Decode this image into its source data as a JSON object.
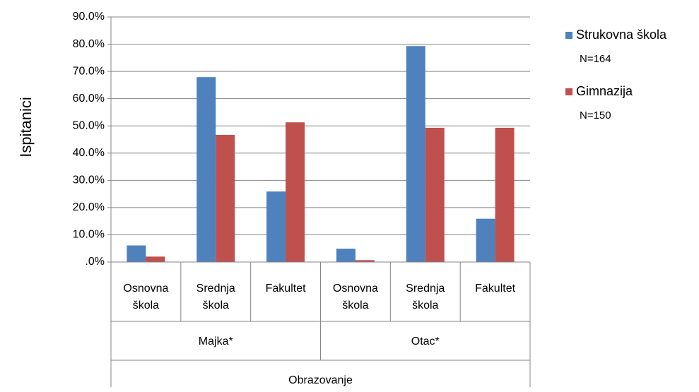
{
  "chart_data": {
    "type": "bar",
    "y_label": "Ispitanici",
    "x_label": "Obrazovanje",
    "categories": [
      "Osnovna škola",
      "Srednja škola",
      "Fakultet",
      "Osnovna škola",
      "Srednja škola",
      "Fakultet"
    ],
    "groups": [
      {
        "name": "Majka*",
        "size": 3
      },
      {
        "name": "Otac*",
        "size": 3
      }
    ],
    "series": [
      {
        "name": "Strukovna škola",
        "note": "N=164",
        "color": "#4f81bd",
        "values": [
          6.1,
          67.9,
          25.9,
          4.9,
          79.3,
          15.9
        ]
      },
      {
        "name": "Gimnazija",
        "note": "N=150",
        "color": "#c0504d",
        "values": [
          2.0,
          46.7,
          51.3,
          0.7,
          49.3,
          49.3
        ]
      }
    ],
    "ylim": [
      0,
      90
    ],
    "yticks": [
      {
        "value": 0,
        "label": ".0%"
      },
      {
        "value": 10,
        "label": "10.0%"
      },
      {
        "value": 20,
        "label": "20.0%"
      },
      {
        "value": 30,
        "label": "30.0%"
      },
      {
        "value": 40,
        "label": "40.0%"
      },
      {
        "value": 50,
        "label": "50.0%"
      },
      {
        "value": 60,
        "label": "60.0%"
      },
      {
        "value": 70,
        "label": "70.0%"
      },
      {
        "value": 80,
        "label": "80.0%"
      },
      {
        "value": 90,
        "label": "90.0%"
      }
    ],
    "grid": true,
    "legend": "right"
  }
}
